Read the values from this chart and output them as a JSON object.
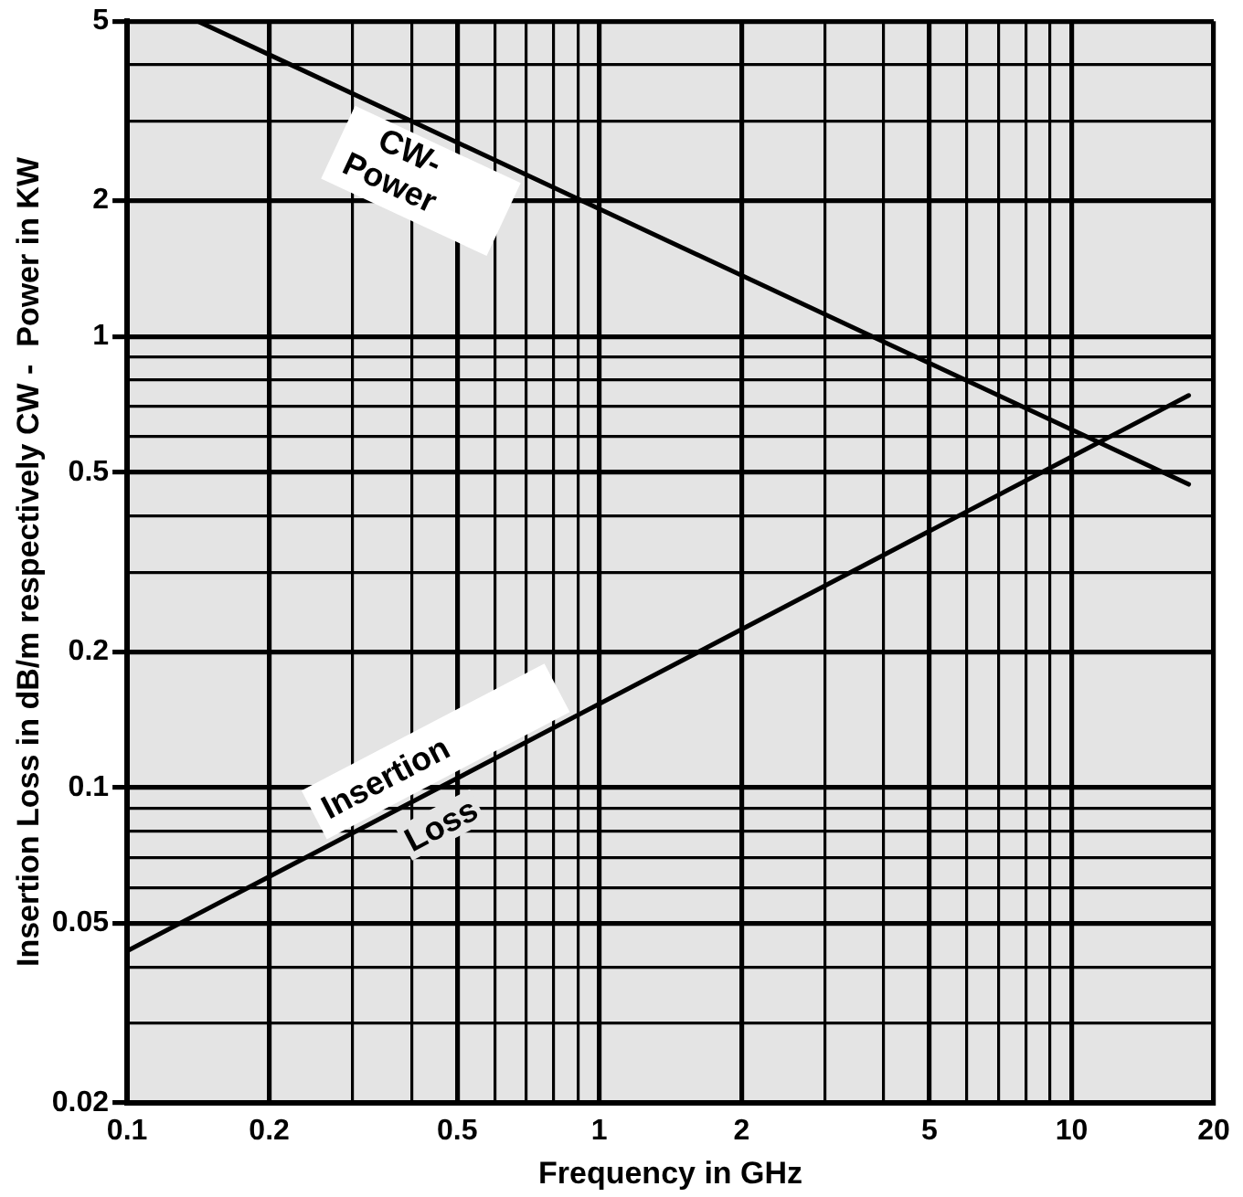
{
  "chart_data": {
    "type": "line",
    "xlabel": "Frequency in GHz",
    "ylabel": "Insertion Loss in dB/m respectively CW -  Power in KW",
    "log": "xy",
    "grid": true,
    "legend": false,
    "marker": "none",
    "line_style": "solid",
    "xlim": [
      0.1,
      20
    ],
    "ylim": [
      0.02,
      5
    ],
    "xticks": [
      0.1,
      0.2,
      {
        "value": 0.3,
        "label": null
      },
      {
        "value": 0.4,
        "label": null
      },
      0.5,
      {
        "value": 0.6,
        "label": null
      },
      {
        "value": 0.7,
        "label": null
      },
      {
        "value": 0.8,
        "label": null
      },
      {
        "value": 0.9,
        "label": null
      },
      1,
      2,
      {
        "value": 3,
        "label": null
      },
      {
        "value": 4,
        "label": null
      },
      5,
      {
        "value": 6,
        "label": null
      },
      {
        "value": 7,
        "label": null
      },
      {
        "value": 8,
        "label": null
      },
      {
        "value": 9,
        "label": null
      },
      10,
      20
    ],
    "yticks": [
      0.02,
      {
        "value": 0.03,
        "label": null
      },
      {
        "value": 0.04,
        "label": null
      },
      0.05,
      {
        "value": 0.06,
        "label": null
      },
      {
        "value": 0.07,
        "label": null
      },
      {
        "value": 0.08,
        "label": null
      },
      {
        "value": 0.09,
        "label": null
      },
      0.1,
      0.2,
      {
        "value": 0.3,
        "label": null
      },
      {
        "value": 0.4,
        "label": null
      },
      0.5,
      {
        "value": 0.6,
        "label": null
      },
      {
        "value": 0.7,
        "label": null
      },
      {
        "value": 0.8,
        "label": null
      },
      {
        "value": 0.9,
        "label": null
      },
      1,
      2,
      {
        "value": 3,
        "label": null
      },
      {
        "value": 4,
        "label": null
      },
      5
    ],
    "series": [
      {
        "name": "CW- Power",
        "color": "#000000",
        "x": [
          0.141,
          17.7
        ],
        "values": [
          5,
          0.47
        ]
      },
      {
        "name": "Insertion Loss",
        "color": "#000000",
        "x": [
          0.1,
          17.7
        ],
        "values": [
          0.0434,
          0.74
        ]
      }
    ]
  }
}
